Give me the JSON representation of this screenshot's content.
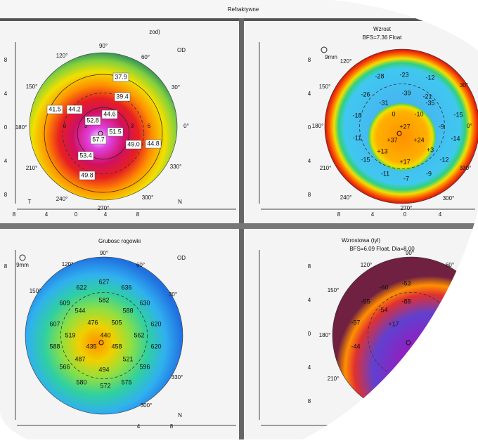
{
  "header": {
    "title": "Refraktywne"
  },
  "panels": [
    {
      "title": "zod)",
      "eye": "OD",
      "left": "T",
      "right": "N",
      "angles": [
        "90°",
        "60°",
        "30°",
        "0°",
        "330°",
        "300°",
        "270°",
        "240°",
        "210°",
        "180°",
        "150°",
        "120°"
      ],
      "yticks": [
        "8",
        "4",
        "0",
        "4",
        "8"
      ],
      "xticks": [
        "8",
        "4",
        "0",
        "4",
        "8"
      ],
      "values": [
        "37.9",
        "39.4",
        "44.6",
        "41.5",
        "44.2",
        "52.8",
        "51.5",
        "57.7",
        "49.0",
        "44.8",
        "53.4",
        "49.8"
      ],
      "rings": [
        "6",
        "3",
        "3",
        "6"
      ]
    },
    {
      "title": "Wzrost",
      "subtitle": "BFS=7.36 Float",
      "zoom": "9mm",
      "angles": [
        "120°",
        "150°",
        "180°",
        "210°",
        "240°",
        "270°",
        "300°",
        "30°",
        "0°",
        "330°"
      ],
      "yticks": [
        "8",
        "4",
        "0",
        "4",
        "8"
      ],
      "xticks": [
        "8",
        "4",
        "0",
        "4"
      ],
      "values": [
        "-28",
        "-23",
        "-12",
        "-26",
        "-39",
        "-21",
        "-31",
        "-35",
        "-18",
        "0",
        "-10",
        "-15",
        "+27",
        "-9",
        "-11",
        "+37",
        "+24",
        "-14",
        "+13",
        "+3",
        "-15",
        "+17",
        "-12",
        "-11",
        "-7",
        "-9"
      ]
    },
    {
      "title": "Grubosc rogowki",
      "eye": "OD",
      "right": "N",
      "zoom": "9mm",
      "angles": [
        "90°",
        "120°",
        "150°",
        "60°",
        "30°",
        "330°",
        "300°"
      ],
      "yticks": [
        "8"
      ],
      "xticks": [
        "4",
        "8"
      ],
      "values": [
        "627",
        "622",
        "636",
        "609",
        "582",
        "630",
        "544",
        "588",
        "607",
        "476",
        "505",
        "620",
        "519",
        "440",
        "562",
        "588",
        "435",
        "458",
        "620",
        "487",
        "521",
        "566",
        "494",
        "596",
        "580",
        "572",
        "575"
      ]
    },
    {
      "title": "Wzrostowa (tyl)",
      "subtitle": "BFS=6.09 Float, Dia=8.00",
      "angles": [
        "120°",
        "90°",
        "60°",
        "150°",
        "180°",
        "210°"
      ],
      "yticks": [
        "8",
        "4",
        "0",
        "4",
        "8"
      ],
      "values": [
        "-60",
        "-53",
        "-55",
        "-54",
        "-88",
        "-57",
        "+17",
        "-44"
      ]
    }
  ]
}
